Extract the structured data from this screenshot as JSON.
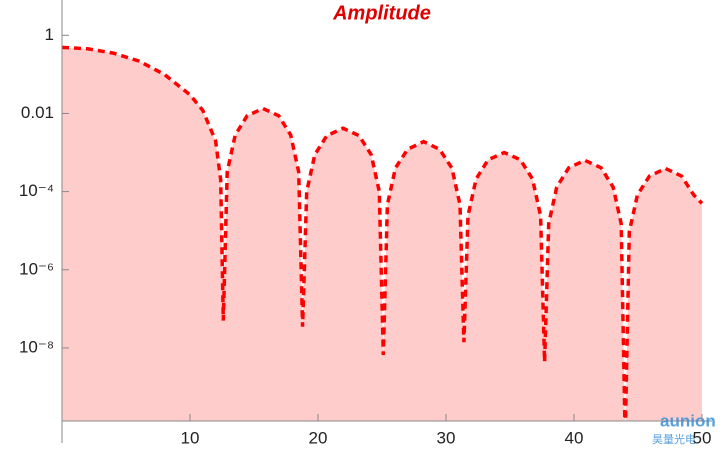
{
  "chart_data": {
    "type": "area",
    "title": "Amplitude",
    "x": [
      0,
      2,
      4,
      6,
      8,
      10,
      11,
      12,
      12.4,
      12.6,
      12.91,
      13.53,
      14.46,
      15.7,
      16.94,
      17.87,
      18.49,
      18.8,
      19.12,
      19.75,
      20.69,
      21.95,
      23.21,
      24.16,
      24.79,
      25.1,
      25.42,
      26.05,
      26.99,
      28.25,
      29.51,
      30.46,
      31.09,
      31.4,
      31.72,
      32.35,
      33.29,
      34.55,
      35.81,
      36.76,
      37.39,
      37.7,
      38.02,
      38.65,
      39.59,
      40.85,
      42.11,
      43.06,
      43.69,
      44,
      44.32,
      44.95,
      45.89,
      47.15,
      48.41,
      49.36,
      50
    ],
    "series": [
      {
        "color": "#ff0000",
        "fill": "#ffcccc",
        "values": [
          0.49,
          0.45,
          0.35,
          0.22,
          0.1,
          0.03,
          0.012,
          0.002,
          0.0002,
          5e-08,
          0.00032,
          0.0028,
          0.0087,
          0.0134,
          0.0087,
          0.0028,
          0.00032,
          3.5e-08,
          0.0001,
          0.00088,
          0.0027,
          0.0042,
          0.0027,
          0.00088,
          0.0001,
          6.6e-09,
          4.6e-05,
          0.0004,
          0.0012,
          0.0019,
          0.0012,
          0.0004,
          4.6e-05,
          1.4e-08,
          2.4e-05,
          0.00021,
          0.00065,
          0.001,
          0.00065,
          0.00021,
          2.4e-05,
          4.4e-09,
          1.5e-05,
          0.00013,
          0.00041,
          0.00063,
          0.00041,
          0.00013,
          1.5e-05,
          5e-11,
          9.4e-06,
          8.2e-05,
          0.00025,
          0.00039,
          0.00025,
          8.2e-05,
          5e-05
        ]
      }
    ],
    "xlim": [
      0,
      50
    ],
    "xticks": [
      10,
      20,
      30,
      40,
      50
    ],
    "ylim": [
      1.35e-10,
      8
    ],
    "log_y": true,
    "yticks": [
      1,
      0.01,
      {
        "value": 0.0001,
        "label": "10⁻⁴"
      },
      {
        "value": 1e-06,
        "label": "10⁻⁶"
      },
      {
        "value": 1e-08,
        "label": "10⁻⁸"
      }
    ],
    "watermark": [
      "aunion",
      "昊量光电"
    ]
  }
}
